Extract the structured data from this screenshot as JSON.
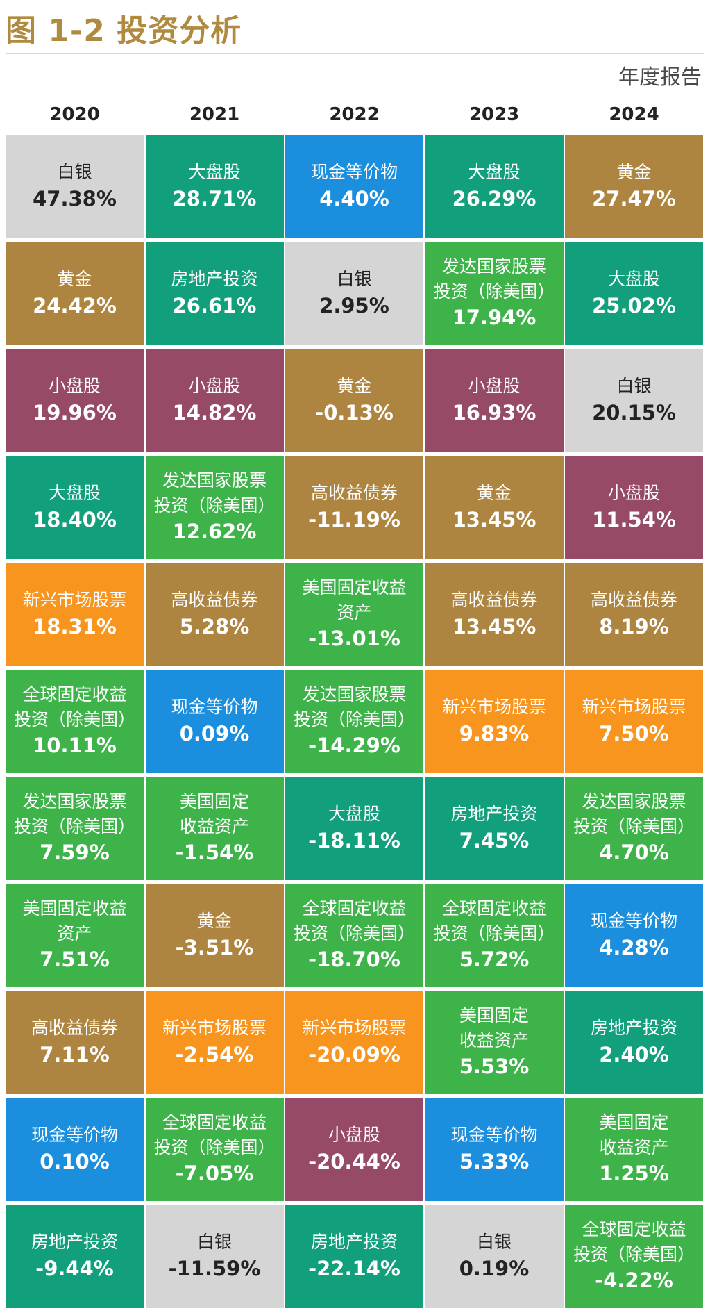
{
  "title": "图 1-2  投资分析",
  "subtitle": "年度报告",
  "colors": {
    "白银": "#d5d5d5",
    "大盘股": "#12a07c",
    "现金等价物": "#1b8fde",
    "黄金": "#ae8540",
    "房地产投资": "#12a07c",
    "发达国家股票投资(除美国)": "#3db34a",
    "小盘股": "#964a68",
    "高收益债券": "#ae8540",
    "美国固定收益资产": "#3db34a",
    "新兴市场股票": "#f7951e",
    "全球固定收益投资(除美国)": "#3db34a"
  },
  "chart_data": {
    "type": "table",
    "years": [
      "2020",
      "2021",
      "2022",
      "2023",
      "2024"
    ],
    "columns": [
      [
        {
          "asset": "白银",
          "label": "白银",
          "value": 47.38,
          "text": "47.38%"
        },
        {
          "asset": "黄金",
          "label": "黄金",
          "value": 24.42,
          "text": "24.42%"
        },
        {
          "asset": "小盘股",
          "label": "小盘股",
          "value": 19.96,
          "text": "19.96%"
        },
        {
          "asset": "大盘股",
          "label": "大盘股",
          "value": 18.4,
          "text": "18.40%"
        },
        {
          "asset": "新兴市场股票",
          "label": "新兴市场股票",
          "value": 18.31,
          "text": "18.31%"
        },
        {
          "asset": "全球固定收益投资(除美国)",
          "label": "全球固定收益\n投资（除美国）",
          "value": 10.11,
          "text": "10.11%"
        },
        {
          "asset": "发达国家股票投资(除美国)",
          "label": "发达国家股票\n投资（除美国）",
          "value": 7.59,
          "text": "7.59%"
        },
        {
          "asset": "美国固定收益资产",
          "label": "美国固定收益\n资产",
          "value": 7.51,
          "text": "7.51%"
        },
        {
          "asset": "高收益债券",
          "label": "高收益债券",
          "value": 7.11,
          "text": "7.11%"
        },
        {
          "asset": "现金等价物",
          "label": "现金等价物",
          "value": 0.1,
          "text": "0.10%"
        },
        {
          "asset": "房地产投资",
          "label": "房地产投资",
          "value": -9.44,
          "text": "-9.44%"
        }
      ],
      [
        {
          "asset": "大盘股",
          "label": "大盘股",
          "value": 28.71,
          "text": "28.71%"
        },
        {
          "asset": "房地产投资",
          "label": "房地产投资",
          "value": 26.61,
          "text": "26.61%"
        },
        {
          "asset": "小盘股",
          "label": "小盘股",
          "value": 14.82,
          "text": "14.82%"
        },
        {
          "asset": "发达国家股票投资(除美国)",
          "label": "发达国家股票\n投资（除美国）",
          "value": 12.62,
          "text": "12.62%"
        },
        {
          "asset": "高收益债券",
          "label": "高收益债券",
          "value": 5.28,
          "text": "5.28%"
        },
        {
          "asset": "现金等价物",
          "label": "现金等价物",
          "value": 0.09,
          "text": "0.09%"
        },
        {
          "asset": "美国固定收益资产",
          "label": "美国固定\n收益资产",
          "value": -1.54,
          "text": "-1.54%"
        },
        {
          "asset": "黄金",
          "label": "黄金",
          "value": -3.51,
          "text": "-3.51%"
        },
        {
          "asset": "新兴市场股票",
          "label": "新兴市场股票",
          "value": -2.54,
          "text": "-2.54%"
        },
        {
          "asset": "全球固定收益投资(除美国)",
          "label": "全球固定收益\n投资（除美国）",
          "value": -7.05,
          "text": "-7.05%"
        },
        {
          "asset": "白银",
          "label": "白银",
          "value": -11.59,
          "text": "-11.59%"
        }
      ],
      [
        {
          "asset": "现金等价物",
          "label": "现金等价物",
          "value": 4.4,
          "text": "4.40%"
        },
        {
          "asset": "白银",
          "label": "白银",
          "value": 2.95,
          "text": "2.95%"
        },
        {
          "asset": "黄金",
          "label": "黄金",
          "value": -0.13,
          "text": "-0.13%"
        },
        {
          "asset": "高收益债券",
          "label": "高收益债券",
          "value": -11.19,
          "text": "-11.19%"
        },
        {
          "asset": "美国固定收益资产",
          "label": "美国固定收益\n资产",
          "value": -13.01,
          "text": "-13.01%"
        },
        {
          "asset": "发达国家股票投资(除美国)",
          "label": "发达国家股票\n投资（除美国）",
          "value": -14.29,
          "text": "-14.29%"
        },
        {
          "asset": "大盘股",
          "label": "大盘股",
          "value": -18.11,
          "text": "-18.11%"
        },
        {
          "asset": "全球固定收益投资(除美国)",
          "label": "全球固定收益\n投资（除美国）",
          "value": -18.7,
          "text": "-18.70%"
        },
        {
          "asset": "新兴市场股票",
          "label": "新兴市场股票",
          "value": -20.09,
          "text": "-20.09%"
        },
        {
          "asset": "小盘股",
          "label": "小盘股",
          "value": -20.44,
          "text": "-20.44%"
        },
        {
          "asset": "房地产投资",
          "label": "房地产投资",
          "value": -22.14,
          "text": "-22.14%"
        }
      ],
      [
        {
          "asset": "大盘股",
          "label": "大盘股",
          "value": 26.29,
          "text": "26.29%"
        },
        {
          "asset": "发达国家股票投资(除美国)",
          "label": "发达国家股票\n投资（除美国）",
          "value": 17.94,
          "text": "17.94%"
        },
        {
          "asset": "小盘股",
          "label": "小盘股",
          "value": 16.93,
          "text": "16.93%"
        },
        {
          "asset": "黄金",
          "label": "黄金",
          "value": 13.45,
          "text": "13.45%"
        },
        {
          "asset": "高收益债券",
          "label": "高收益债券",
          "value": 13.45,
          "text": "13.45%"
        },
        {
          "asset": "新兴市场股票",
          "label": "新兴市场股票",
          "value": 9.83,
          "text": "9.83%"
        },
        {
          "asset": "房地产投资",
          "label": "房地产投资",
          "value": 7.45,
          "text": "7.45%"
        },
        {
          "asset": "全球固定收益投资(除美国)",
          "label": "全球固定收益\n投资（除美国）",
          "value": 5.72,
          "text": "5.72%"
        },
        {
          "asset": "美国固定收益资产",
          "label": "美国固定\n收益资产",
          "value": 5.53,
          "text": "5.53%"
        },
        {
          "asset": "现金等价物",
          "label": "现金等价物",
          "value": 5.33,
          "text": "5.33%"
        },
        {
          "asset": "白银",
          "label": "白银",
          "value": 0.19,
          "text": "0.19%"
        }
      ],
      [
        {
          "asset": "黄金",
          "label": "黄金",
          "value": 27.47,
          "text": "27.47%"
        },
        {
          "asset": "大盘股",
          "label": "大盘股",
          "value": 25.02,
          "text": "25.02%"
        },
        {
          "asset": "白银",
          "label": "白银",
          "value": 20.15,
          "text": "20.15%"
        },
        {
          "asset": "小盘股",
          "label": "小盘股",
          "value": 11.54,
          "text": "11.54%"
        },
        {
          "asset": "高收益债券",
          "label": "高收益债券",
          "value": 8.19,
          "text": "8.19%"
        },
        {
          "asset": "新兴市场股票",
          "label": "新兴市场股票",
          "value": 7.5,
          "text": "7.50%"
        },
        {
          "asset": "发达国家股票投资(除美国)",
          "label": "发达国家股票\n投资（除美国）",
          "value": 4.7,
          "text": "4.70%"
        },
        {
          "asset": "现金等价物",
          "label": "现金等价物",
          "value": 4.28,
          "text": "4.28%"
        },
        {
          "asset": "房地产投资",
          "label": "房地产投资",
          "value": 2.4,
          "text": "2.40%"
        },
        {
          "asset": "美国固定收益资产",
          "label": "美国固定\n收益资产",
          "value": 1.25,
          "text": "1.25%"
        },
        {
          "asset": "全球固定收益投资(除美国)",
          "label": "全球固定收益\n投资（除美国）",
          "value": -4.22,
          "text": "-4.22%"
        }
      ]
    ]
  }
}
